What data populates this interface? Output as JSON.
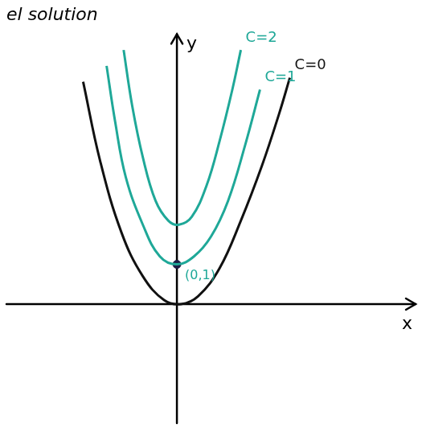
{
  "chart_data": {
    "type": "line",
    "title": "el solution",
    "x_label": "x",
    "y_label": "y",
    "xlim": [
      -4,
      5.6
    ],
    "ylim": [
      -3,
      6.8
    ],
    "grid": false,
    "tick_labels": false,
    "series": [
      {
        "name": "C=0",
        "color": "#111111",
        "x": [
          -2.2,
          -1.8,
          -1.3,
          -0.8,
          -0.3,
          0.1,
          0.5,
          1.0,
          1.5,
          2.0,
          2.4,
          2.65
        ],
        "values": [
          5.6,
          3.6,
          1.8,
          0.7,
          0.1,
          0,
          0.2,
          0.9,
          2.1,
          3.5,
          4.8,
          5.7
        ]
      },
      {
        "name": "C=1",
        "color": "#1fa898",
        "x": [
          -1.65,
          -1.45,
          -1.2,
          -0.8,
          -0.4,
          0,
          0.4,
          0.8,
          1.2,
          1.6,
          1.95
        ],
        "values": [
          6.0,
          4.6,
          3.2,
          2.0,
          1.2,
          1.0,
          1.2,
          1.7,
          2.6,
          4.0,
          5.4
        ]
      },
      {
        "name": "C=2",
        "color": "#1fa898",
        "x": [
          -1.25,
          -1.05,
          -0.8,
          -0.5,
          -0.2,
          0.05,
          0.35,
          0.7,
          1.0,
          1.3,
          1.5
        ],
        "values": [
          6.4,
          5.0,
          3.7,
          2.6,
          2.1,
          2.0,
          2.2,
          3.0,
          4.1,
          5.4,
          6.4
        ]
      }
    ],
    "points": [
      {
        "x": 0,
        "y": 1,
        "label": "(0,1)",
        "color": "#1c1c44"
      }
    ]
  }
}
